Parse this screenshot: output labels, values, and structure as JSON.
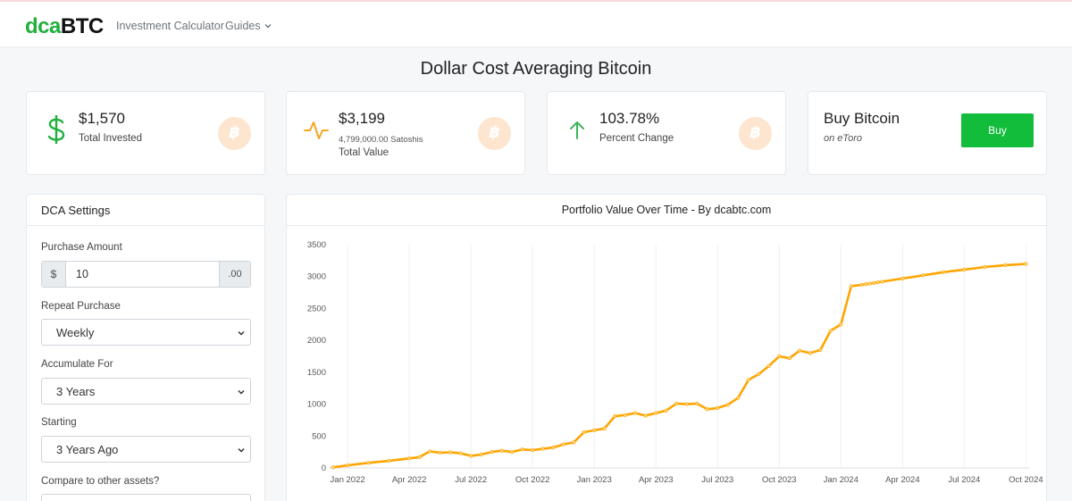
{
  "nav": {
    "logo_dca": "dca",
    "logo_btc": "BTC",
    "links": [
      "Investment Calculator",
      "Guides"
    ]
  },
  "page_title": "Dollar Cost Averaging Bitcoin",
  "stats": {
    "invested": {
      "value": "$1,570",
      "label": "Total Invested"
    },
    "total": {
      "value": "$3,199",
      "sub": "4,799,000.00 Satoshis",
      "label": "Total Value"
    },
    "change": {
      "value": "103.78%",
      "label": "Percent Change"
    },
    "coin_symbol": "฿"
  },
  "buy": {
    "title": "Buy Bitcoin",
    "subtitle": "on eToro",
    "button": "Buy"
  },
  "settings": {
    "title": "DCA Settings",
    "purchase_amount_label": "Purchase Amount",
    "currency_prefix": "$",
    "amount": "10",
    "cents": ".00",
    "repeat_label": "Repeat Purchase",
    "repeat_value": "Weekly",
    "accumulate_label": "Accumulate For",
    "accumulate_value": "3 Years",
    "starting_label": "Starting",
    "starting_value": "3 Years Ago",
    "compare_label": "Compare to other assets?"
  },
  "colors": {
    "accent_green": "#13bd3c",
    "line": "#ffa500",
    "coin": "#fde5cf"
  },
  "chart_data": {
    "type": "line",
    "title": "Portfolio Value Over Time - By dcabtc.com",
    "ylim": [
      0,
      3500
    ],
    "yticks": [
      0,
      500,
      1000,
      1500,
      2000,
      2500,
      3000,
      3500
    ],
    "xticks": [
      "Jan 2022",
      "Apr 2022",
      "Jul 2022",
      "Oct 2022",
      "Jan 2023",
      "Apr 2023",
      "Jul 2023",
      "Oct 2023",
      "Jan 2024",
      "Apr 2024",
      "Jul 2024",
      "Oct 2024"
    ],
    "x_range_months": [
      -0.7,
      33.2
    ],
    "series": [
      {
        "name": "Portfolio Value",
        "x_months": [
          -0.7,
          0,
          1,
          2,
          3,
          3.5,
          4,
          4.5,
          5,
          5.5,
          6,
          6.5,
          7,
          7.5,
          8,
          8.5,
          9,
          9.5,
          10,
          10.5,
          11,
          11.5,
          12,
          12.5,
          13,
          13.5,
          14,
          14.5,
          15,
          15.5,
          16,
          16.5,
          17,
          17.5,
          18,
          18.5,
          19,
          19.5,
          20,
          20.5,
          21,
          21.5,
          22,
          22.5,
          23,
          23.5,
          24,
          24.5,
          25,
          25.2,
          25.4,
          25.6,
          25.8,
          26,
          27,
          28,
          29,
          30,
          31,
          32,
          33
        ],
        "values": [
          10,
          40,
          80,
          110,
          150,
          170,
          260,
          240,
          245,
          230,
          190,
          210,
          250,
          270,
          250,
          290,
          280,
          300,
          320,
          370,
          400,
          560,
          590,
          620,
          810,
          830,
          860,
          820,
          860,
          900,
          1010,
          1000,
          1010,
          920,
          940,
          990,
          1100,
          1380,
          1470,
          1600,
          1750,
          1720,
          1840,
          1800,
          1850,
          2150,
          2250,
          2850,
          2870,
          2880,
          2890,
          2900,
          2910,
          2920,
          2970,
          3020,
          3070,
          3110,
          3150,
          3180,
          3199
        ]
      }
    ]
  }
}
